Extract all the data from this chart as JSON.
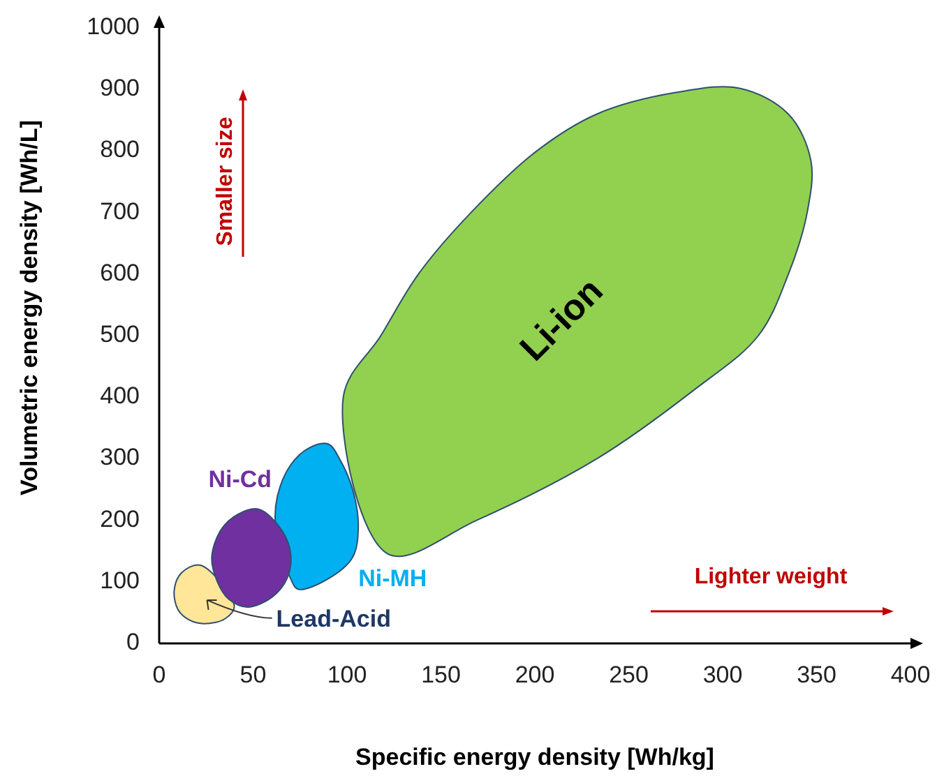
{
  "chart_data": {
    "type": "area",
    "xlabel": "Specific energy density [Wh/kg]",
    "ylabel": "Volumetric energy density [Wh/L]",
    "xlim": [
      0,
      400
    ],
    "ylim": [
      0,
      1000
    ],
    "xticks": [
      0,
      50,
      100,
      150,
      200,
      250,
      300,
      350,
      400
    ],
    "yticks": [
      0,
      100,
      200,
      300,
      400,
      500,
      600,
      700,
      800,
      900,
      1000
    ],
    "grid": false,
    "series": [
      {
        "name": "Li-ion",
        "color": "#92d050",
        "x": [
          122,
          169,
          233,
          284,
          319,
          335,
          345,
          347,
          335,
          309,
          275,
          233,
          201,
          166,
          138,
          118,
          98,
          122
        ],
        "values": [
          145,
          200,
          300,
          410,
          500,
          600,
          700,
          784,
          860,
          902,
          895,
          860,
          800,
          700,
          600,
          500,
          400,
          145
        ]
      },
      {
        "name": "Ni-MH",
        "color": "#00b0f0",
        "x": [
          74,
          90,
          103,
          106,
          103,
          96,
          90,
          80,
          70,
          63,
          62,
          70,
          74
        ],
        "values": [
          88,
          105,
          140,
          190,
          250,
          300,
          324,
          318,
          290,
          240,
          190,
          105,
          88
        ]
      },
      {
        "name": "Lead-Acid",
        "color": "#ffe699",
        "x": [
          24,
          35,
          40,
          22,
          12,
          8,
          10,
          16,
          24
        ],
        "values": [
          32,
          40,
          60,
          127,
          115,
          86,
          55,
          38,
          32
        ]
      },
      {
        "name": "Ni-Cd",
        "color": "#7030a0",
        "x": [
          47,
          60,
          68,
          70,
          65,
          53,
          42,
          33,
          28,
          31,
          37,
          47
        ],
        "values": [
          59,
          75,
          105,
          145,
          185,
          218,
          210,
          185,
          140,
          100,
          72,
          59
        ]
      }
    ],
    "annotations": [
      "Smaller size",
      "Lighter weight"
    ]
  }
}
